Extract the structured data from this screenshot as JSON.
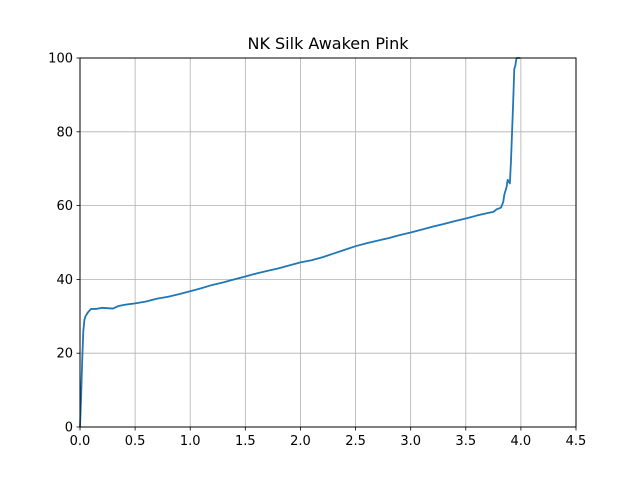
{
  "chart_data": {
    "type": "line",
    "title": "NK Silk Awaken Pink",
    "xlabel": "",
    "ylabel": "",
    "xlim": [
      0.0,
      4.5
    ],
    "ylim": [
      0,
      100
    ],
    "grid": true,
    "x_ticks": [
      "0.0",
      "0.5",
      "1.0",
      "1.5",
      "2.0",
      "2.5",
      "3.0",
      "3.5",
      "4.0",
      "4.5"
    ],
    "y_ticks": [
      "0",
      "20",
      "40",
      "60",
      "80",
      "100"
    ],
    "series": [
      {
        "color": "#1f77b4",
        "x": [
          0.0,
          0.01,
          0.02,
          0.03,
          0.04,
          0.05,
          0.07,
          0.1,
          0.15,
          0.2,
          0.25,
          0.3,
          0.35,
          0.4,
          0.5,
          0.6,
          0.7,
          0.8,
          0.9,
          1.0,
          1.1,
          1.2,
          1.3,
          1.4,
          1.5,
          1.6,
          1.7,
          1.8,
          1.9,
          2.0,
          2.1,
          2.2,
          2.3,
          2.4,
          2.5,
          2.6,
          2.7,
          2.8,
          2.9,
          3.0,
          3.1,
          3.2,
          3.3,
          3.4,
          3.5,
          3.6,
          3.7,
          3.75,
          3.78,
          3.8,
          3.82,
          3.84,
          3.85,
          3.87,
          3.88,
          3.9,
          3.91,
          3.92,
          3.93,
          3.94,
          3.95,
          3.96,
          3.97,
          3.98,
          3.99
        ],
        "y": [
          0,
          8,
          18,
          26,
          29,
          30,
          31,
          32,
          32,
          32.3,
          32.2,
          32.1,
          32.8,
          33.1,
          33.5,
          34,
          34.8,
          35.3,
          36,
          36.8,
          37.6,
          38.5,
          39.2,
          40,
          40.8,
          41.6,
          42.3,
          43,
          43.8,
          44.6,
          45.2,
          46,
          47,
          48,
          49,
          49.8,
          50.5,
          51.2,
          52,
          52.7,
          53.5,
          54.3,
          55,
          55.8,
          56.5,
          57.3,
          58,
          58.3,
          59,
          59.2,
          59.5,
          61,
          63,
          65,
          67,
          66,
          72,
          80,
          88,
          97,
          98,
          100,
          100,
          100,
          100
        ]
      }
    ]
  }
}
